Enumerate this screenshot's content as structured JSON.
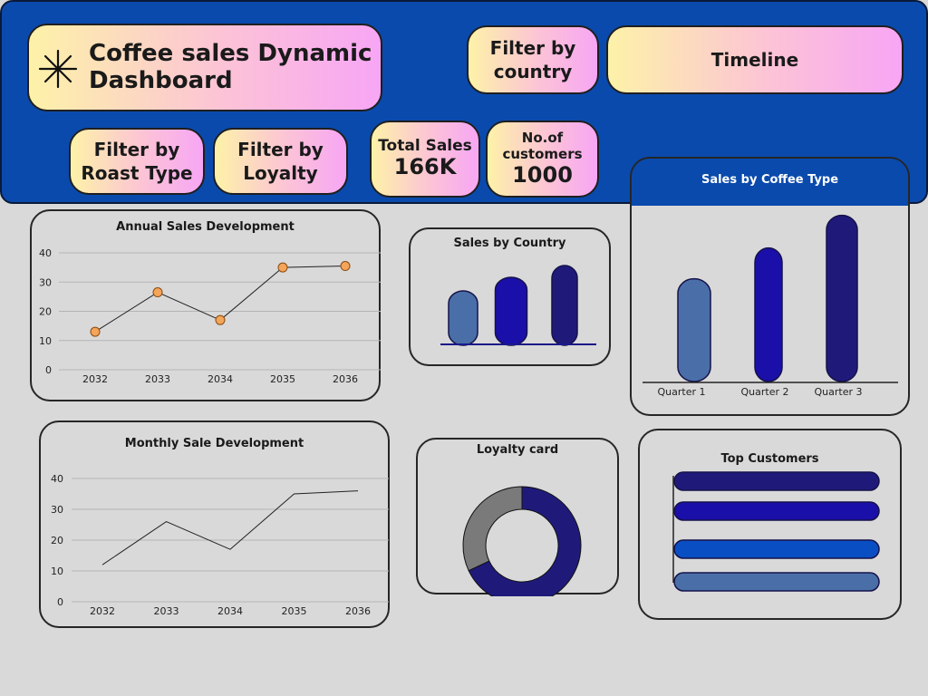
{
  "header": {
    "title_line1": "Coffee sales Dynamic",
    "title_line2": "Dashboard",
    "filter_country_l1": "Filter by",
    "filter_country_l2": "country",
    "timeline": "Timeline",
    "filter_roast_l1": "Filter by",
    "filter_roast_l2": "Roast Type",
    "filter_loyalty_l1": "Filter by",
    "filter_loyalty_l2": "Loyalty",
    "total_sales_label": "Total Sales",
    "total_sales_value": "166K",
    "customers_label_l1": "No.of",
    "customers_label_l2": "customers",
    "customers_value": "1000"
  },
  "colors": {
    "header_bg": "#0a4aad",
    "dashboard_bg": "#d9d9d9",
    "marker": "#f4a55a",
    "bar_light": "#4a6fa8",
    "bar_mid": "#1a0fa8",
    "bar_dark": "#1f1a7a",
    "bar_blue": "#0a4ec4",
    "donut_main": "#1f1a7a",
    "donut_rest": "#7a7a7a"
  },
  "chart_data": [
    {
      "type": "line",
      "title": "Annual Sales Development",
      "categories": [
        "2032",
        "2033",
        "2034",
        "2035",
        "2036"
      ],
      "values": [
        13,
        26.5,
        17,
        35,
        35.5
      ],
      "ylim": [
        0,
        40
      ],
      "yticks": [
        "0",
        "10",
        "20",
        "30",
        "40"
      ],
      "markers": true,
      "grid": true
    },
    {
      "type": "line",
      "title": "Monthly Sale Development",
      "categories": [
        "2032",
        "2033",
        "2034",
        "2035",
        "2036"
      ],
      "values": [
        12,
        26,
        17,
        35,
        36
      ],
      "ylim": [
        0,
        40
      ],
      "yticks": [
        "0",
        "10",
        "20",
        "30",
        "40"
      ],
      "markers": false,
      "grid": true
    },
    {
      "type": "bar",
      "title": "Sales by Country",
      "values": [
        0.6,
        0.75,
        0.88
      ],
      "colors": [
        "#4a6fa8",
        "#1a0fa8",
        "#1f1a7a"
      ]
    },
    {
      "type": "bar",
      "title": "Sales by Coffee Type",
      "categories": [
        "Quarter 1",
        "Quarter 2",
        "Quarter 3"
      ],
      "values": [
        0.6,
        0.78,
        0.97
      ],
      "colors": [
        "#4a6fa8",
        "#1a0fa8",
        "#1f1a7a"
      ]
    },
    {
      "type": "pie",
      "title": "Loyalty card",
      "donut": true,
      "values": [
        0.68,
        0.32
      ],
      "colors": [
        "#1f1a7a",
        "#7a7a7a"
      ]
    },
    {
      "type": "bar",
      "orientation": "horizontal",
      "title": "Top Customers",
      "values": [
        1,
        1,
        1,
        1
      ],
      "colors": [
        "#1f1a7a",
        "#1a0fa8",
        "#0a4ec4",
        "#4a6fa8"
      ]
    }
  ]
}
